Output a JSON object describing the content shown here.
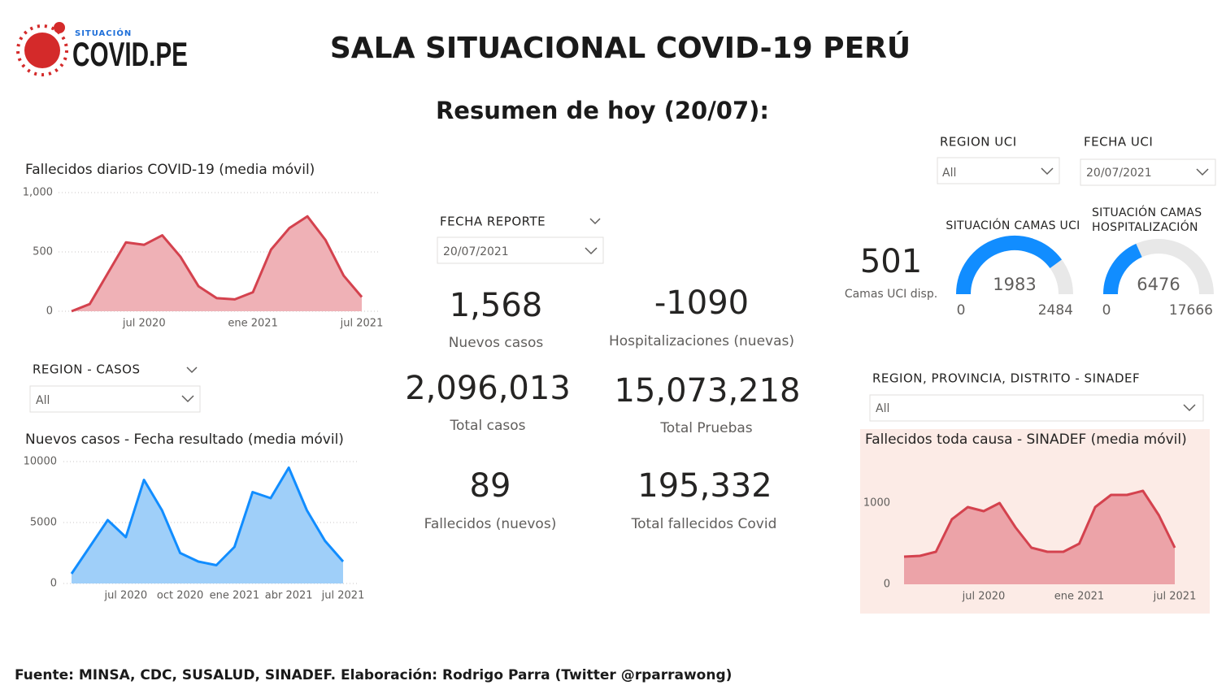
{
  "header": {
    "logo_top": "SITUACIÓN",
    "logo_main": "COVID.PE",
    "title": "SALA SITUACIONAL COVID-19 PERÚ",
    "subtitle": "Resumen de hoy (20/07):"
  },
  "filters": [
    {
      "label": "FECHA REPORTE",
      "selected": "20/07/2021"
    },
    {
      "label": "REGION UCI",
      "selected": "All"
    },
    {
      "label": "FECHA UCI",
      "selected": "20/07/2021"
    },
    {
      "label": "REGION - CASOS",
      "selected": "All"
    },
    {
      "label": "REGION, PROVINCIA, DISTRITO - SINADEF",
      "selected": "All"
    }
  ],
  "kpis": [
    {
      "value": "1,568",
      "label": "Nuevos casos"
    },
    {
      "value": "-1090",
      "label": "Hospitalizaciones (nuevas)"
    },
    {
      "value": "2,096,013",
      "label": "Total casos"
    },
    {
      "value": "15,073,218",
      "label": "Total Pruebas"
    },
    {
      "value": "89",
      "label": "Fallecidos (nuevos)"
    },
    {
      "value": "195,332",
      "label": "Total fallecidos Covid"
    },
    {
      "value": "501",
      "label": "Camas UCI disp."
    }
  ],
  "gauges": [
    {
      "title_lines": [
        "SITUACIÓN CAMAS UCI"
      ],
      "value": 1983,
      "min": 0,
      "max": 2484,
      "color": "#118dff",
      "track": "#e8e8e8"
    },
    {
      "title_lines": [
        "SITUACIÓN CAMAS",
        "HOSPITALIZACIÓN"
      ],
      "value": 6476,
      "min": 0,
      "max": 17666,
      "color": "#118dff",
      "track": "#e8e8e8"
    }
  ],
  "chart_data": [
    {
      "type": "area",
      "title": "Fallecidos diarios COVID-19 (media móvil)",
      "color": "#d4424e",
      "fill": "#efb1b6",
      "grid": true,
      "x": [
        "2020-03",
        "2020-04",
        "2020-05",
        "2020-06",
        "2020-07",
        "2020-08",
        "2020-09",
        "2020-10",
        "2020-11",
        "2020-12",
        "2021-01",
        "2021-02",
        "2021-03",
        "2021-04",
        "2021-05",
        "2021-06",
        "2021-07"
      ],
      "values": [
        0,
        60,
        320,
        580,
        560,
        640,
        460,
        210,
        110,
        100,
        160,
        520,
        700,
        800,
        600,
        300,
        120
      ],
      "xlim": [
        "2020-03",
        "2021-07"
      ],
      "ylim": [
        0,
        1000
      ],
      "xticks": [
        {
          "value": "2020-07",
          "label": "jul 2020"
        },
        {
          "value": "2021-01",
          "label": "ene 2021"
        },
        {
          "value": "2021-07",
          "label": "jul 2021"
        }
      ],
      "yticks": [
        0,
        500,
        {
          "value": 1000,
          "label": "1,000"
        }
      ]
    },
    {
      "type": "area",
      "title": "Nuevos casos - Fecha resultado (media móvil)",
      "color": "#118dff",
      "fill": "#9fcff9",
      "grid": true,
      "x": [
        "2020-04",
        "2020-05",
        "2020-06",
        "2020-07",
        "2020-08",
        "2020-09",
        "2020-10",
        "2020-11",
        "2020-12",
        "2021-01",
        "2021-02",
        "2021-03",
        "2021-04",
        "2021-05",
        "2021-06",
        "2021-07"
      ],
      "values": [
        800,
        3000,
        5200,
        3800,
        8500,
        6000,
        2500,
        1800,
        1500,
        3000,
        7500,
        7000,
        9500,
        6000,
        3500,
        1800
      ],
      "xlim": [
        "2020-04",
        "2021-07"
      ],
      "ylim": [
        0,
        10000
      ],
      "xticks": [
        {
          "value": "2020-07",
          "label": "jul 2020"
        },
        {
          "value": "2020-10",
          "label": "oct 2020"
        },
        {
          "value": "2021-01",
          "label": "ene 2021"
        },
        {
          "value": "2021-04",
          "label": "abr 2021"
        },
        {
          "value": "2021-07",
          "label": "jul 2021"
        }
      ],
      "yticks": [
        0,
        5000,
        10000
      ]
    },
    {
      "type": "area",
      "title": "Fallecidos toda causa - SINADEF (media móvil)",
      "color": "#d4424e",
      "fill": "#eca3a8",
      "grid": false,
      "background": "#fcebe6",
      "x": [
        "2020-02",
        "2020-03",
        "2020-04",
        "2020-05",
        "2020-06",
        "2020-07",
        "2020-08",
        "2020-09",
        "2020-10",
        "2020-11",
        "2020-12",
        "2021-01",
        "2021-02",
        "2021-03",
        "2021-04",
        "2021-05",
        "2021-06",
        "2021-07"
      ],
      "values": [
        340,
        350,
        400,
        800,
        950,
        900,
        1000,
        700,
        450,
        400,
        400,
        500,
        950,
        1100,
        1100,
        1150,
        850,
        450
      ],
      "xlim": [
        "2020-02",
        "2021-07"
      ],
      "ylim": [
        0,
        1600
      ],
      "xticks": [
        {
          "value": "2020-07",
          "label": "jul 2020"
        },
        {
          "value": "2021-01",
          "label": "ene 2021"
        },
        {
          "value": "2021-07",
          "label": "jul 2021"
        }
      ],
      "yticks": [
        0,
        1000
      ]
    }
  ],
  "footer": "Fuente: MINSA, CDC, SUSALUD, SINADEF. Elaboración: Rodrigo Parra (Twitter @rparrawong)"
}
